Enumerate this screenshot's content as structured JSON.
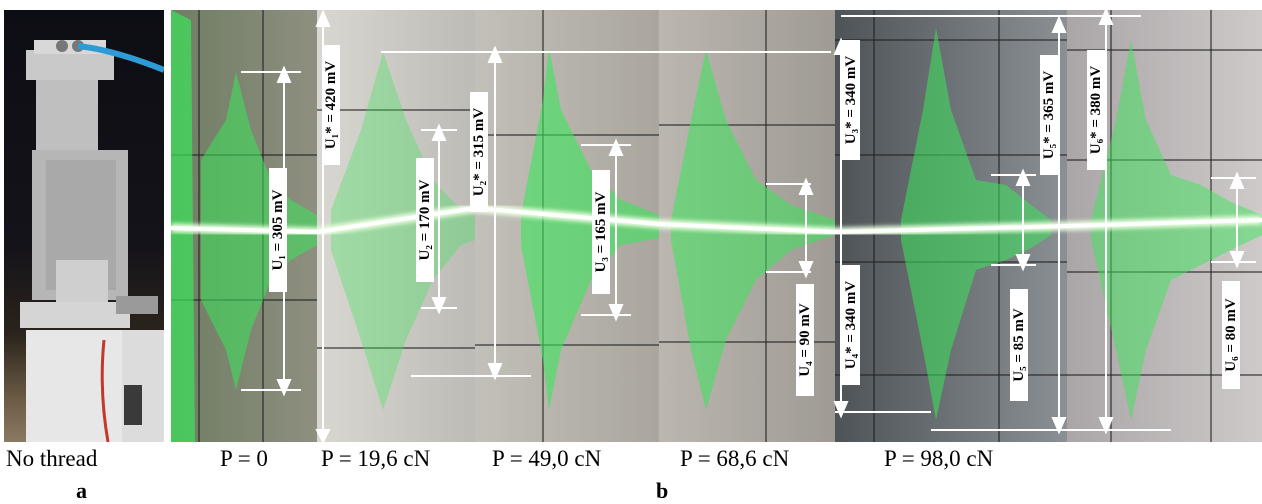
{
  "labels": {
    "no_thread": "No thread",
    "p0": "P = 0",
    "p1": "P = 19,6 cN",
    "p2": "P = 49,0 cN",
    "p3": "P = 68,6 cN",
    "p4": "P = 98,0 cN",
    "sub_a": "a",
    "sub_b": "b"
  },
  "measurements": {
    "u1": "U₁ = 305 mV",
    "u1_star": "U₁* = 420 mV",
    "u2": "U₂ = 170 mV",
    "u2_star": "U₂* = 315 mV",
    "u3": "U₃ = 165 mV",
    "u3_star": "U₃* = 340 mV",
    "u4": "U₄ = 90 mV",
    "u4_star": "U₄* = 340 mV",
    "u5": "U₅ = 85 mV",
    "u5_star": "U₅* = 365 mV",
    "u6": "U₆ = 80 mV",
    "u6_star": "U₆* = 380 mV"
  },
  "colors": {
    "signal": "#3be65a",
    "arrow": "#ffffff"
  }
}
